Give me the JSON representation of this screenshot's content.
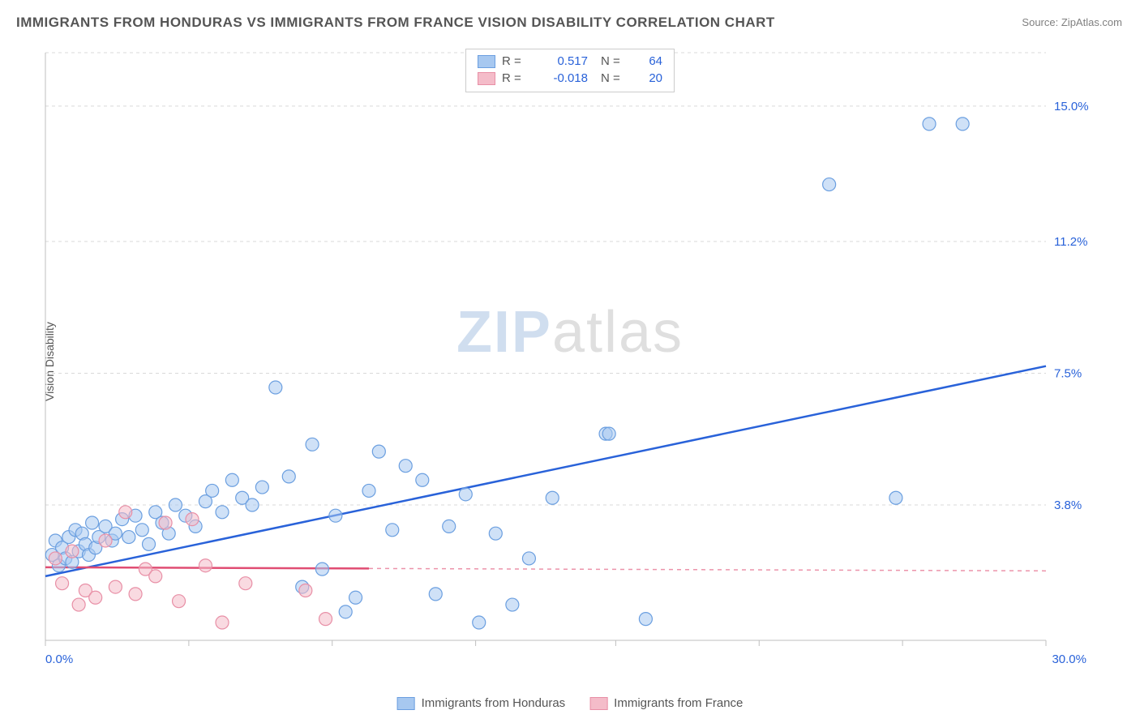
{
  "title": "IMMIGRANTS FROM HONDURAS VS IMMIGRANTS FROM FRANCE VISION DISABILITY CORRELATION CHART",
  "source_label": "Source:",
  "source_name": "ZipAtlas.com",
  "ylabel": "Vision Disability",
  "watermark_zip": "ZIP",
  "watermark_atlas": "atlas",
  "chart": {
    "type": "scatter",
    "xlim": [
      0,
      30
    ],
    "ylim": [
      0,
      16.5
    ],
    "x_axis_labels": [
      {
        "value": 0,
        "text": "0.0%",
        "color": "#2962d9"
      },
      {
        "value": 30,
        "text": "30.0%",
        "color": "#2962d9"
      }
    ],
    "y_axis_labels": [
      {
        "value": 3.8,
        "text": "3.8%",
        "color": "#2962d9"
      },
      {
        "value": 7.5,
        "text": "7.5%",
        "color": "#2962d9"
      },
      {
        "value": 11.2,
        "text": "11.2%",
        "color": "#2962d9"
      },
      {
        "value": 15.0,
        "text": "15.0%",
        "color": "#2962d9"
      }
    ],
    "x_ticks": [
      0,
      4.3,
      8.6,
      12.9,
      17.1,
      21.4,
      25.7,
      30
    ],
    "grid_color": "#d9d9d9",
    "grid_dash": "4,4",
    "background_color": "#ffffff",
    "axis_line_color": "#bfbfbf",
    "marker_radius": 8,
    "marker_opacity": 0.55,
    "line_width": 2.5,
    "series": [
      {
        "name": "Immigrants from Honduras",
        "fill_color": "#a7c8f0",
        "stroke_color": "#6b9fe0",
        "line_color": "#2962d9",
        "R": "0.517",
        "N": "64",
        "trend": {
          "x1": 0,
          "y1": 1.8,
          "x2": 30,
          "y2": 7.7,
          "solid_until": 30
        },
        "points": [
          [
            0.2,
            2.4
          ],
          [
            0.3,
            2.8
          ],
          [
            0.4,
            2.1
          ],
          [
            0.5,
            2.6
          ],
          [
            0.6,
            2.3
          ],
          [
            0.7,
            2.9
          ],
          [
            0.8,
            2.2
          ],
          [
            0.9,
            3.1
          ],
          [
            1.0,
            2.5
          ],
          [
            1.1,
            3.0
          ],
          [
            1.2,
            2.7
          ],
          [
            1.3,
            2.4
          ],
          [
            1.4,
            3.3
          ],
          [
            1.5,
            2.6
          ],
          [
            1.6,
            2.9
          ],
          [
            1.8,
            3.2
          ],
          [
            2.0,
            2.8
          ],
          [
            2.1,
            3.0
          ],
          [
            2.3,
            3.4
          ],
          [
            2.5,
            2.9
          ],
          [
            2.7,
            3.5
          ],
          [
            2.9,
            3.1
          ],
          [
            3.1,
            2.7
          ],
          [
            3.3,
            3.6
          ],
          [
            3.5,
            3.3
          ],
          [
            3.7,
            3.0
          ],
          [
            3.9,
            3.8
          ],
          [
            4.2,
            3.5
          ],
          [
            4.5,
            3.2
          ],
          [
            4.8,
            3.9
          ],
          [
            5.0,
            4.2
          ],
          [
            5.3,
            3.6
          ],
          [
            5.6,
            4.5
          ],
          [
            5.9,
            4.0
          ],
          [
            6.2,
            3.8
          ],
          [
            6.5,
            4.3
          ],
          [
            6.9,
            7.1
          ],
          [
            7.3,
            4.6
          ],
          [
            7.7,
            1.5
          ],
          [
            8.0,
            5.5
          ],
          [
            8.3,
            2.0
          ],
          [
            8.7,
            3.5
          ],
          [
            9.0,
            0.8
          ],
          [
            9.3,
            1.2
          ],
          [
            9.7,
            4.2
          ],
          [
            10.0,
            5.3
          ],
          [
            10.4,
            3.1
          ],
          [
            10.8,
            4.9
          ],
          [
            11.3,
            4.5
          ],
          [
            11.7,
            1.3
          ],
          [
            12.1,
            3.2
          ],
          [
            12.6,
            4.1
          ],
          [
            13.0,
            0.5
          ],
          [
            13.5,
            3.0
          ],
          [
            14.0,
            1.0
          ],
          [
            14.5,
            2.3
          ],
          [
            15.2,
            4.0
          ],
          [
            16.8,
            5.8
          ],
          [
            16.9,
            5.8
          ],
          [
            18.0,
            0.6
          ],
          [
            23.5,
            12.8
          ],
          [
            25.5,
            4.0
          ],
          [
            26.5,
            14.5
          ],
          [
            27.5,
            14.5
          ]
        ]
      },
      {
        "name": "Immigrants from France",
        "fill_color": "#f4bcc9",
        "stroke_color": "#e88fa6",
        "line_color": "#e04d73",
        "R": "-0.018",
        "N": "20",
        "trend": {
          "x1": 0,
          "y1": 2.05,
          "x2": 30,
          "y2": 1.95,
          "solid_until": 9.7
        },
        "points": [
          [
            0.3,
            2.3
          ],
          [
            0.5,
            1.6
          ],
          [
            0.8,
            2.5
          ],
          [
            1.0,
            1.0
          ],
          [
            1.2,
            1.4
          ],
          [
            1.5,
            1.2
          ],
          [
            1.8,
            2.8
          ],
          [
            2.1,
            1.5
          ],
          [
            2.4,
            3.6
          ],
          [
            2.7,
            1.3
          ],
          [
            3.0,
            2.0
          ],
          [
            3.3,
            1.8
          ],
          [
            3.6,
            3.3
          ],
          [
            4.0,
            1.1
          ],
          [
            4.4,
            3.4
          ],
          [
            4.8,
            2.1
          ],
          [
            5.3,
            0.5
          ],
          [
            6.0,
            1.6
          ],
          [
            7.8,
            1.4
          ],
          [
            8.4,
            0.6
          ]
        ]
      }
    ]
  },
  "legend_top": {
    "r_label": "R  =",
    "n_label": "N  =",
    "value_color_1": "#2962d9",
    "value_color_2": "#e04d73"
  },
  "legend_bottom": [
    {
      "swatch_fill": "#a7c8f0",
      "swatch_stroke": "#6b9fe0",
      "label": "Immigrants from Honduras"
    },
    {
      "swatch_fill": "#f4bcc9",
      "swatch_stroke": "#e88fa6",
      "label": "Immigrants from France"
    }
  ]
}
